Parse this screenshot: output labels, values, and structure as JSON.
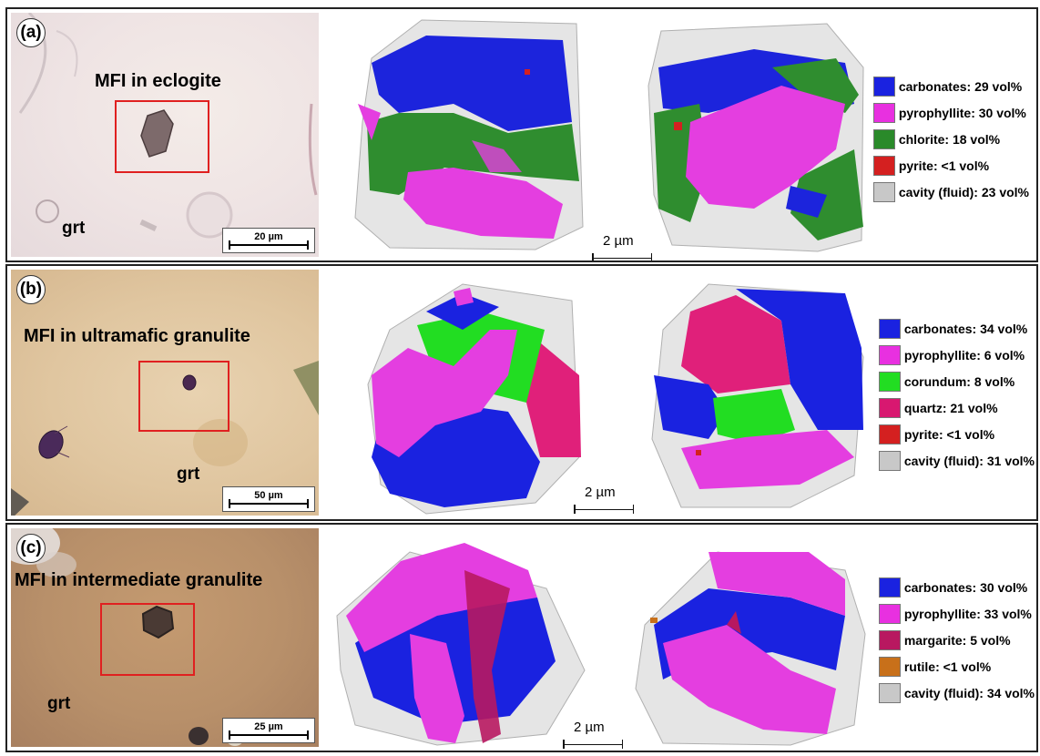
{
  "panels": [
    {
      "label": "(a)",
      "title": "MFI in eclogite",
      "host_label": "grt",
      "photo_scale": "20 µm",
      "model_scale": "2 µm",
      "legend": [
        {
          "text": "carbonates: 29 vol%",
          "color": "#1a22e0"
        },
        {
          "text": "pyrophyllite: 30 vol%",
          "color": "#e830e0"
        },
        {
          "text": "chlorite: 18 vol%",
          "color": "#2a8a2a"
        },
        {
          "text": "pyrite: <1 vol%",
          "color": "#d42020"
        },
        {
          "text": "cavity (fluid): 23 vol%",
          "color": "#c8c8c8"
        }
      ]
    },
    {
      "label": "(b)",
      "title": "MFI in ultramafic granulite",
      "host_label": "grt",
      "photo_scale": "50 µm",
      "model_scale": "2 µm",
      "legend": [
        {
          "text": "carbonates: 34 vol%",
          "color": "#1a22e0"
        },
        {
          "text": "pyrophyllite: 6 vol%",
          "color": "#e830e0"
        },
        {
          "text": "corundum: 8 vol%",
          "color": "#22dd22"
        },
        {
          "text": "quartz: 21 vol%",
          "color": "#d81870"
        },
        {
          "text": "pyrite: <1 vol%",
          "color": "#d42020"
        },
        {
          "text": "cavity (fluid): 31 vol%",
          "color": "#c8c8c8"
        }
      ]
    },
    {
      "label": "(c)",
      "title": "MFI in intermediate granulite",
      "host_label": "grt",
      "photo_scale": "25 µm",
      "model_scale": "2 µm",
      "legend": [
        {
          "text": "carbonates: 30 vol%",
          "color": "#1a22e0"
        },
        {
          "text": "pyrophyllite: 33 vol%",
          "color": "#e830e0"
        },
        {
          "text": "margarite: 5 vol%",
          "color": "#b81860"
        },
        {
          "text": "rutile: <1 vol%",
          "color": "#c8701a"
        },
        {
          "text": "cavity (fluid): 34 vol%",
          "color": "#c8c8c8"
        }
      ]
    }
  ]
}
